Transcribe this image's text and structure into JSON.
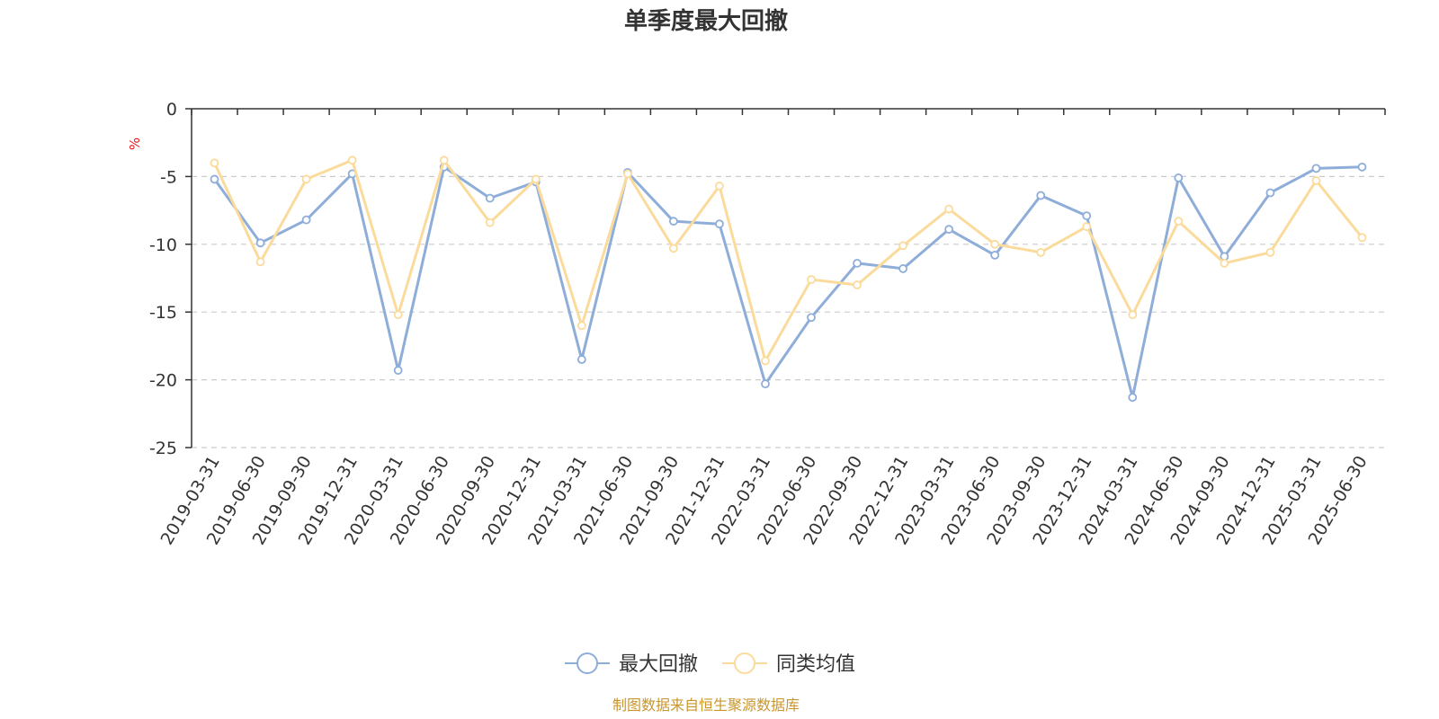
{
  "chart_data": {
    "type": "line",
    "title": "单季度最大回撤",
    "ylabel": "%",
    "ylim": [
      -25,
      0
    ],
    "yticks": [
      0,
      -5,
      -10,
      -15,
      -20,
      -25
    ],
    "grid": true,
    "legend_position": "bottom",
    "categories": [
      "2019-03-31",
      "2019-06-30",
      "2019-09-30",
      "2019-12-31",
      "2020-03-31",
      "2020-06-30",
      "2020-09-30",
      "2020-12-31",
      "2021-03-31",
      "2021-06-30",
      "2021-09-30",
      "2021-12-31",
      "2022-03-31",
      "2022-06-30",
      "2022-09-30",
      "2022-12-31",
      "2023-03-31",
      "2023-06-30",
      "2023-09-30",
      "2023-12-31",
      "2024-03-31",
      "2024-06-30",
      "2024-09-30",
      "2024-12-31",
      "2025-03-31",
      "2025-06-30"
    ],
    "series": [
      {
        "name": "最大回撤",
        "color": "#8eadd9",
        "values": [
          -5.2,
          -9.9,
          -8.2,
          -4.8,
          -19.3,
          -4.3,
          -6.6,
          -5.4,
          -18.5,
          -4.7,
          -8.3,
          -8.5,
          -20.3,
          -15.4,
          -11.4,
          -11.8,
          -8.9,
          -10.8,
          -6.4,
          -7.9,
          -21.3,
          -5.1,
          -10.9,
          -6.2,
          -4.4,
          -4.3
        ]
      },
      {
        "name": "同类均值",
        "color": "#fbdb9c",
        "values": [
          -4.0,
          -11.3,
          -5.2,
          -3.8,
          -15.2,
          -3.8,
          -8.4,
          -5.2,
          -16.0,
          -4.8,
          -10.3,
          -5.7,
          -18.6,
          -12.6,
          -13.0,
          -10.1,
          -7.4,
          -10.0,
          -10.6,
          -8.7,
          -15.2,
          -8.3,
          -11.4,
          -10.6,
          -5.3,
          -9.5
        ]
      }
    ]
  },
  "source": {
    "text": "制图数据来自恒生聚源数据库",
    "color": "#c9962b"
  },
  "colors": {
    "axis": "#333333",
    "grid": "#cccccc",
    "unit": "#e31a1c"
  }
}
